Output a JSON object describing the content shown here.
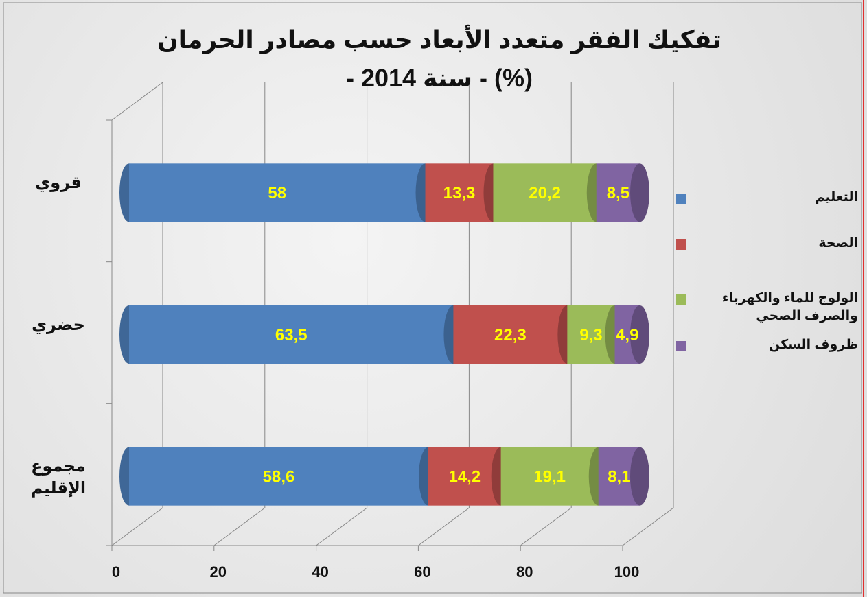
{
  "chart_data": {
    "type": "bar",
    "orientation": "horizontal",
    "stacked": true,
    "three_d": true,
    "title": "تفكيك الفقر متعدد الأبعاد حسب مصادر الحرمان (%) - سنة 2014 -",
    "categories": [
      "قروي",
      "حضري",
      "مجموع الإقليم"
    ],
    "series": [
      {
        "name": "التعليم",
        "color": "#4f81bd",
        "values": [
          58,
          63.5,
          58.6
        ],
        "value_labels": [
          "58",
          "63,5",
          "58,6"
        ]
      },
      {
        "name": "الصحة",
        "color": "#c0504d",
        "values": [
          13.3,
          22.3,
          14.2
        ],
        "value_labels": [
          "13,3",
          "22,3",
          "14,2"
        ]
      },
      {
        "name": "الولوج للماء والكهرباء والصرف الصحي",
        "color": "#9bbb59",
        "values": [
          20.2,
          9.3,
          19.1
        ],
        "value_labels": [
          "20,2",
          "9,3",
          "19,1"
        ]
      },
      {
        "name": "ظروف السكن",
        "color": "#8064a2",
        "values": [
          8.5,
          4.9,
          8.1
        ],
        "value_labels": [
          "8,5",
          "4,9",
          "8,1"
        ]
      }
    ],
    "xlim": [
      0,
      100
    ],
    "xticks": [
      0,
      20,
      40,
      60,
      80,
      100
    ],
    "grid": true,
    "legend": "right"
  }
}
